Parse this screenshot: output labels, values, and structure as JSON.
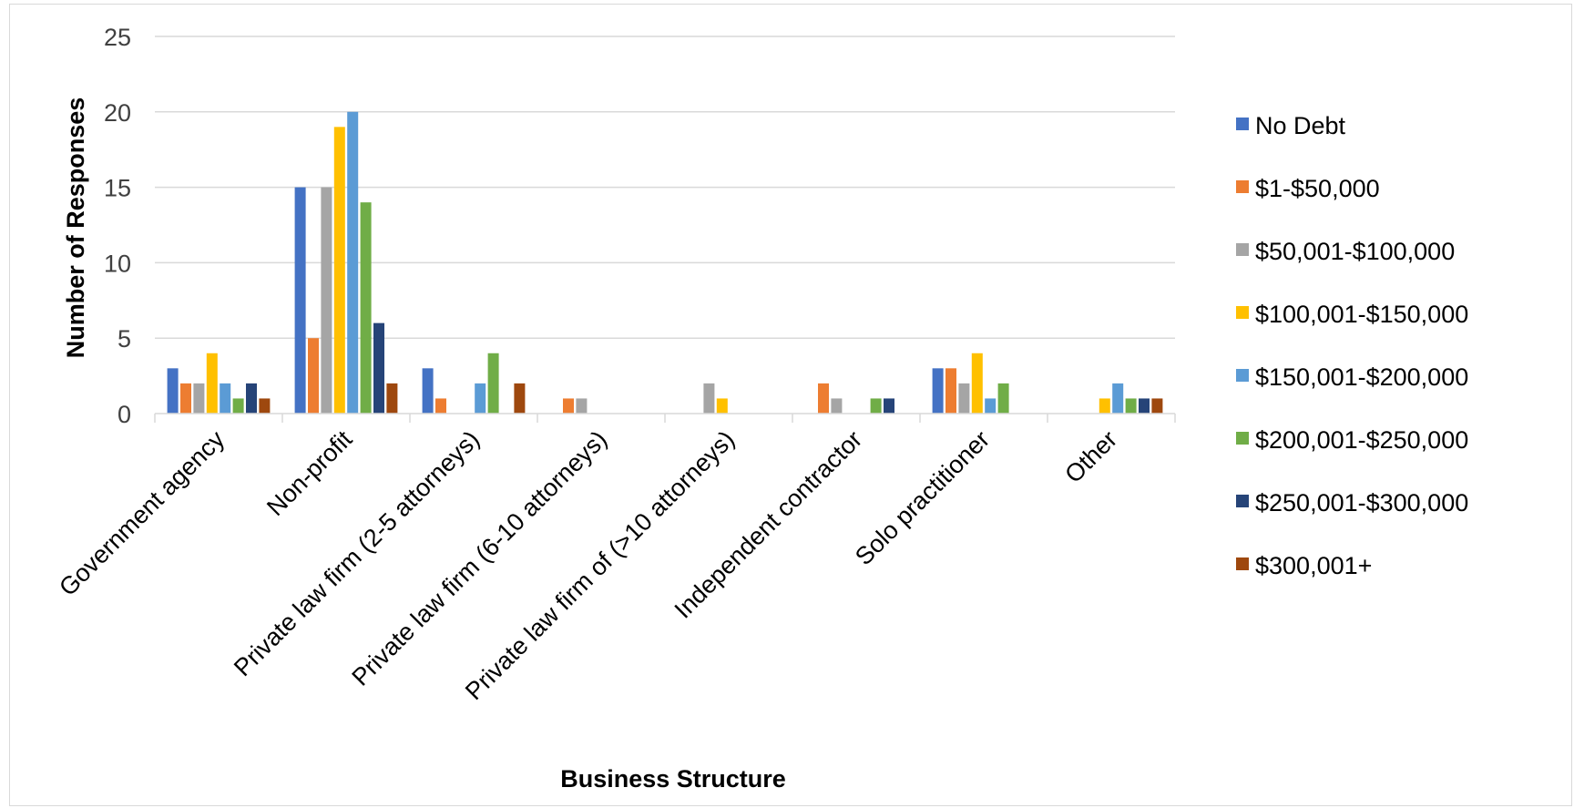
{
  "chart_data": {
    "type": "bar",
    "xlabel": "Business Structure",
    "ylabel": "Number of Responses",
    "ylim": [
      0,
      25
    ],
    "yticks": [
      0,
      5,
      10,
      15,
      20,
      25
    ],
    "grid": true,
    "legend_position": "right",
    "categories": [
      "Government agency",
      "Non-profit",
      "Private law firm (2-5 attorneys)",
      "Private law firm (6-10 attorneys)",
      "Private law firm of (>10 attorneys)",
      "Independent contractor",
      "Solo practitioner",
      "Other"
    ],
    "series": [
      {
        "name": "No Debt",
        "color": "#4472C4",
        "values": [
          3,
          15,
          3,
          0,
          0,
          0,
          3,
          0
        ]
      },
      {
        "name": "$1-$50,000",
        "color": "#ED7D31",
        "values": [
          2,
          5,
          1,
          1,
          0,
          2,
          3,
          0
        ]
      },
      {
        "name": "$50,001-$100,000",
        "color": "#A5A5A5",
        "values": [
          2,
          15,
          0,
          1,
          2,
          1,
          2,
          0
        ]
      },
      {
        "name": "$100,001-$150,000",
        "color": "#FFC000",
        "values": [
          4,
          19,
          0,
          0,
          1,
          0,
          4,
          1
        ]
      },
      {
        "name": "$150,001-$200,000",
        "color": "#5B9BD5",
        "values": [
          2,
          20,
          2,
          0,
          0,
          0,
          1,
          2
        ]
      },
      {
        "name": "$200,001-$250,000",
        "color": "#70AD47",
        "values": [
          1,
          14,
          4,
          0,
          0,
          1,
          2,
          1
        ]
      },
      {
        "name": "$250,001-$300,000",
        "color": "#264478",
        "values": [
          2,
          6,
          0,
          0,
          0,
          1,
          0,
          1
        ]
      },
      {
        "name": "$300,001+",
        "color": "#9E480E",
        "values": [
          1,
          2,
          2,
          0,
          0,
          0,
          0,
          1
        ]
      }
    ]
  }
}
